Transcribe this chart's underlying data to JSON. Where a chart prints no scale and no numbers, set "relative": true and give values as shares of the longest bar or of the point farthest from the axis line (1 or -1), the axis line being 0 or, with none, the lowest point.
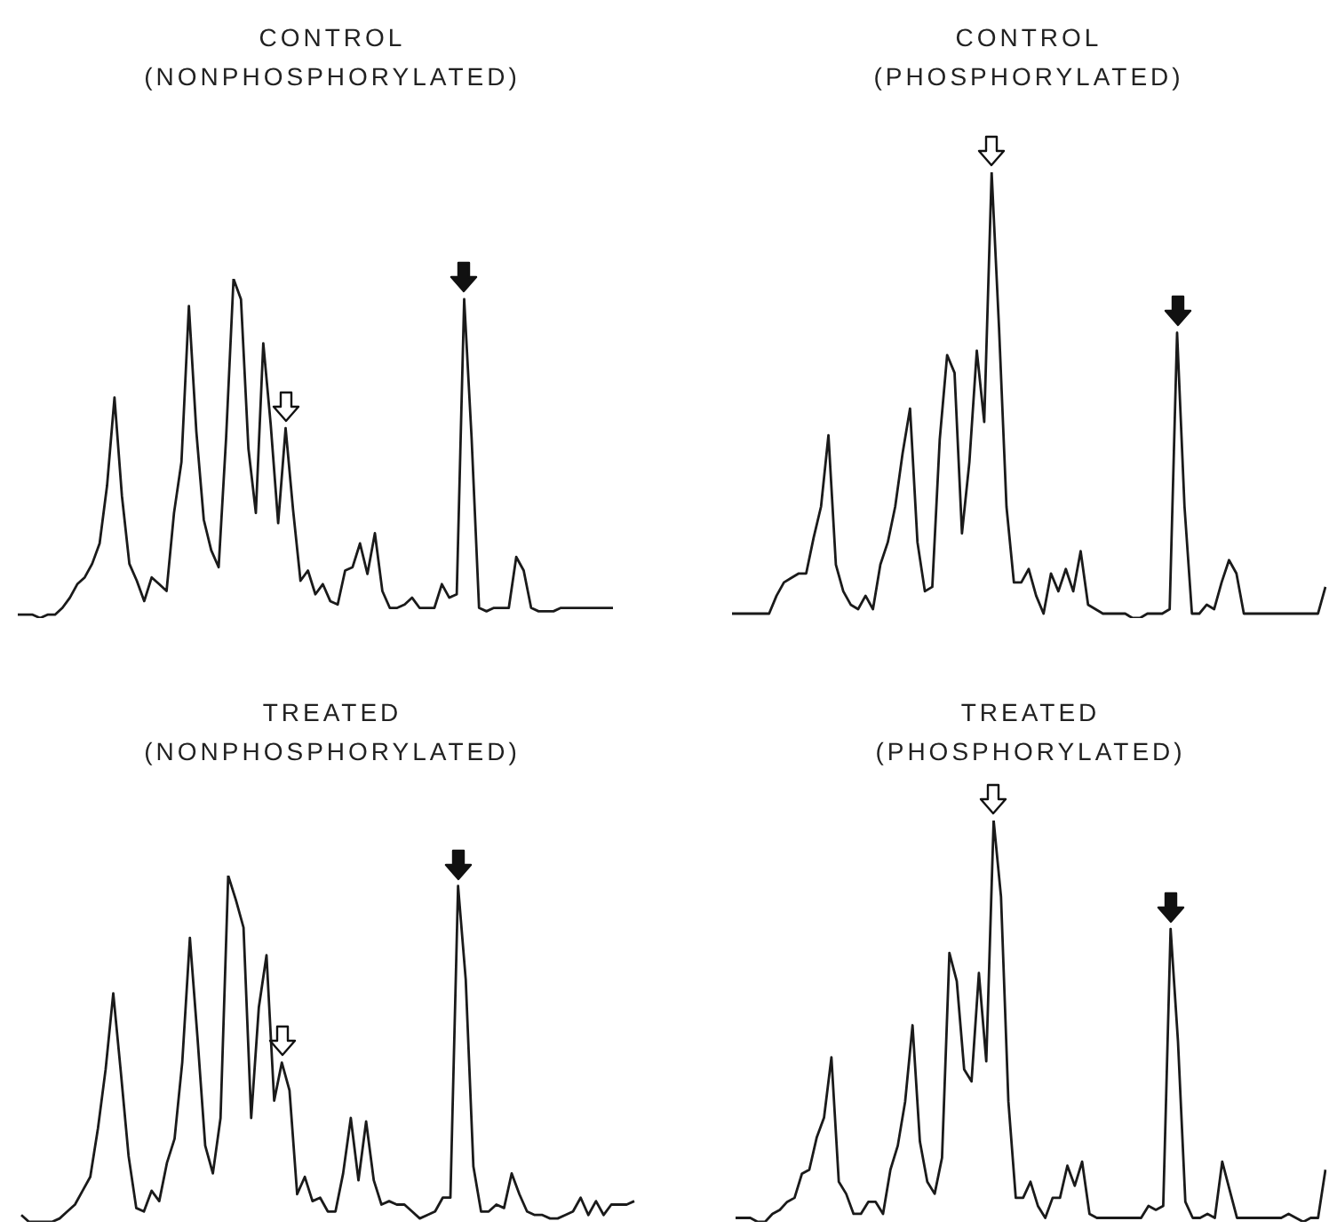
{
  "chart_data": [
    {
      "type": "line",
      "title": "CONTROL\n(NONPHOSPHORYLATED)",
      "relative": true,
      "marker": "none",
      "color": "#1a1a1a",
      "categories": [
        null,
        null,
        null,
        null,
        null,
        null,
        null,
        null,
        null,
        null,
        null,
        null,
        null,
        null,
        null,
        null,
        null,
        null,
        null,
        null,
        null,
        null,
        null,
        null,
        null,
        null,
        null,
        null,
        null,
        null,
        null,
        null,
        null,
        null,
        null,
        null,
        null,
        null,
        null,
        null,
        null,
        null,
        null,
        null,
        null,
        null,
        null,
        null,
        null,
        null,
        null,
        null,
        null,
        null,
        null,
        null,
        null,
        null,
        null,
        null,
        null,
        null,
        null,
        null,
        null,
        null,
        null,
        null,
        null,
        null,
        null,
        null,
        null,
        null,
        null,
        null,
        null,
        null,
        null,
        null,
        null
      ],
      "values": [
        0.01,
        0.01,
        0.01,
        0,
        0.01,
        0.01,
        0.03,
        0.06,
        0.1,
        0.12,
        0.16,
        0.22,
        0.39,
        0.65,
        0.36,
        0.16,
        0.11,
        0.05,
        0.12,
        0.1,
        0.08,
        0.31,
        0.46,
        0.92,
        0.55,
        0.29,
        0.2,
        0.15,
        0.53,
        1.0,
        0.94,
        0.5,
        0.31,
        0.81,
        0.57,
        0.28,
        0.56,
        0.32,
        0.11,
        0.14,
        0.07,
        0.1,
        0.05,
        0.04,
        0.14,
        0.15,
        0.22,
        0.13,
        0.25,
        0.08,
        0.03,
        0.03,
        0.04,
        0.06,
        0.03,
        0.03,
        0.03,
        0.1,
        0.06,
        0.07,
        0.94,
        0.53,
        0.03,
        0.02,
        0.03,
        0.03,
        0.03,
        0.18,
        0.14,
        0.03,
        0.02,
        0.02,
        0.02,
        0.03,
        0.03,
        0.03,
        0.03,
        0.03,
        0.03,
        0.03,
        0.03
      ]
    },
    {
      "type": "line",
      "title": "CONTROL\n(PHOSPHORYLATED)",
      "relative": true,
      "marker": "none",
      "color": "#1a1a1a",
      "categories": [
        null,
        null,
        null,
        null,
        null,
        null,
        null,
        null,
        null,
        null,
        null,
        null,
        null,
        null,
        null,
        null,
        null,
        null,
        null,
        null,
        null,
        null,
        null,
        null,
        null,
        null,
        null,
        null,
        null,
        null,
        null,
        null,
        null,
        null,
        null,
        null,
        null,
        null,
        null,
        null,
        null,
        null,
        null,
        null,
        null,
        null,
        null,
        null,
        null,
        null,
        null,
        null,
        null,
        null,
        null,
        null,
        null,
        null,
        null,
        null,
        null,
        null,
        null,
        null,
        null,
        null,
        null,
        null,
        null,
        null,
        null,
        null,
        null,
        null,
        null,
        null,
        null,
        null,
        null,
        null,
        null
      ],
      "values": [
        0.01,
        0.01,
        0.01,
        0.01,
        0.01,
        0.01,
        0.05,
        0.08,
        0.09,
        0.1,
        0.1,
        0.18,
        0.25,
        0.41,
        0.12,
        0.06,
        0.03,
        0.02,
        0.05,
        0.02,
        0.12,
        0.17,
        0.25,
        0.37,
        0.47,
        0.17,
        0.06,
        0.07,
        0.4,
        0.59,
        0.55,
        0.19,
        0.35,
        0.6,
        0.44,
        1.0,
        0.65,
        0.25,
        0.08,
        0.08,
        0.11,
        0.05,
        0.01,
        0.1,
        0.06,
        0.11,
        0.06,
        0.15,
        0.03,
        0.02,
        0.01,
        0.01,
        0.01,
        0.01,
        0,
        0,
        0.01,
        0.01,
        0.01,
        0.02,
        0.64,
        0.25,
        0.01,
        0.01,
        0.03,
        0.02,
        0.08,
        0.13,
        0.1,
        0.01,
        0.01,
        0.01,
        0.01,
        0.01,
        0.01,
        0.01,
        0.01,
        0.01,
        0.01,
        0.01,
        0.07
      ]
    },
    {
      "type": "line",
      "title": "TREATED\n(NONPHOSPHORYLATED)",
      "relative": true,
      "marker": "none",
      "color": "#1a1a1a",
      "categories": [
        null,
        null,
        null,
        null,
        null,
        null,
        null,
        null,
        null,
        null,
        null,
        null,
        null,
        null,
        null,
        null,
        null,
        null,
        null,
        null,
        null,
        null,
        null,
        null,
        null,
        null,
        null,
        null,
        null,
        null,
        null,
        null,
        null,
        null,
        null,
        null,
        null,
        null,
        null,
        null,
        null,
        null,
        null,
        null,
        null,
        null,
        null,
        null,
        null,
        null,
        null,
        null,
        null,
        null,
        null,
        null,
        null,
        null,
        null,
        null,
        null,
        null,
        null,
        null,
        null,
        null,
        null,
        null,
        null,
        null,
        null,
        null,
        null,
        null,
        null,
        null,
        null,
        null,
        null,
        null,
        null
      ],
      "values": [
        0.02,
        0,
        0,
        0,
        0,
        0.01,
        0.03,
        0.05,
        0.09,
        0.13,
        0.27,
        0.44,
        0.66,
        0.43,
        0.19,
        0.04,
        0.03,
        0.09,
        0.06,
        0.17,
        0.24,
        0.46,
        0.82,
        0.53,
        0.22,
        0.14,
        0.3,
        1.0,
        0.93,
        0.85,
        0.3,
        0.62,
        0.77,
        0.35,
        0.46,
        0.38,
        0.08,
        0.13,
        0.06,
        0.07,
        0.03,
        0.03,
        0.14,
        0.3,
        0.12,
        0.29,
        0.12,
        0.05,
        0.06,
        0.05,
        0.05,
        0.03,
        0.01,
        0.02,
        0.03,
        0.07,
        0.07,
        0.97,
        0.7,
        0.16,
        0.03,
        0.03,
        0.05,
        0.04,
        0.14,
        0.08,
        0.03,
        0.02,
        0.02,
        0.01,
        0.01,
        0.02,
        0.03,
        0.07,
        0.02,
        0.06,
        0.02,
        0.05,
        0.05,
        0.05,
        0.06
      ]
    },
    {
      "type": "line",
      "title": "TREATED\n(PHOSPHORYLATED)",
      "relative": true,
      "marker": "none",
      "color": "#1a1a1a",
      "categories": [
        null,
        null,
        null,
        null,
        null,
        null,
        null,
        null,
        null,
        null,
        null,
        null,
        null,
        null,
        null,
        null,
        null,
        null,
        null,
        null,
        null,
        null,
        null,
        null,
        null,
        null,
        null,
        null,
        null,
        null,
        null,
        null,
        null,
        null,
        null,
        null,
        null,
        null,
        null,
        null,
        null,
        null,
        null,
        null,
        null,
        null,
        null,
        null,
        null,
        null,
        null,
        null,
        null,
        null,
        null,
        null,
        null,
        null,
        null,
        null,
        null,
        null,
        null,
        null,
        null,
        null,
        null,
        null,
        null,
        null,
        null,
        null,
        null,
        null,
        null,
        null,
        null,
        null,
        null,
        null,
        null
      ],
      "values": [
        0.01,
        0.01,
        0.01,
        0,
        0,
        0.02,
        0.03,
        0.05,
        0.06,
        0.12,
        0.13,
        0.21,
        0.26,
        0.41,
        0.1,
        0.07,
        0.02,
        0.02,
        0.05,
        0.05,
        0.02,
        0.13,
        0.19,
        0.3,
        0.49,
        0.2,
        0.1,
        0.07,
        0.16,
        0.67,
        0.6,
        0.38,
        0.35,
        0.62,
        0.4,
        1.0,
        0.81,
        0.3,
        0.06,
        0.06,
        0.1,
        0.04,
        0.01,
        0.06,
        0.06,
        0.14,
        0.09,
        0.15,
        0.02,
        0.01,
        0.01,
        0.01,
        0.01,
        0.01,
        0.01,
        0.01,
        0.04,
        0.03,
        0.04,
        0.73,
        0.45,
        0.05,
        0.01,
        0.01,
        0.02,
        0.01,
        0.15,
        0.08,
        0.01,
        0.01,
        0.01,
        0.01,
        0.01,
        0.01,
        0.01,
        0.02,
        0.01,
        0,
        0.01,
        0.01,
        0.13
      ]
    }
  ]
}
